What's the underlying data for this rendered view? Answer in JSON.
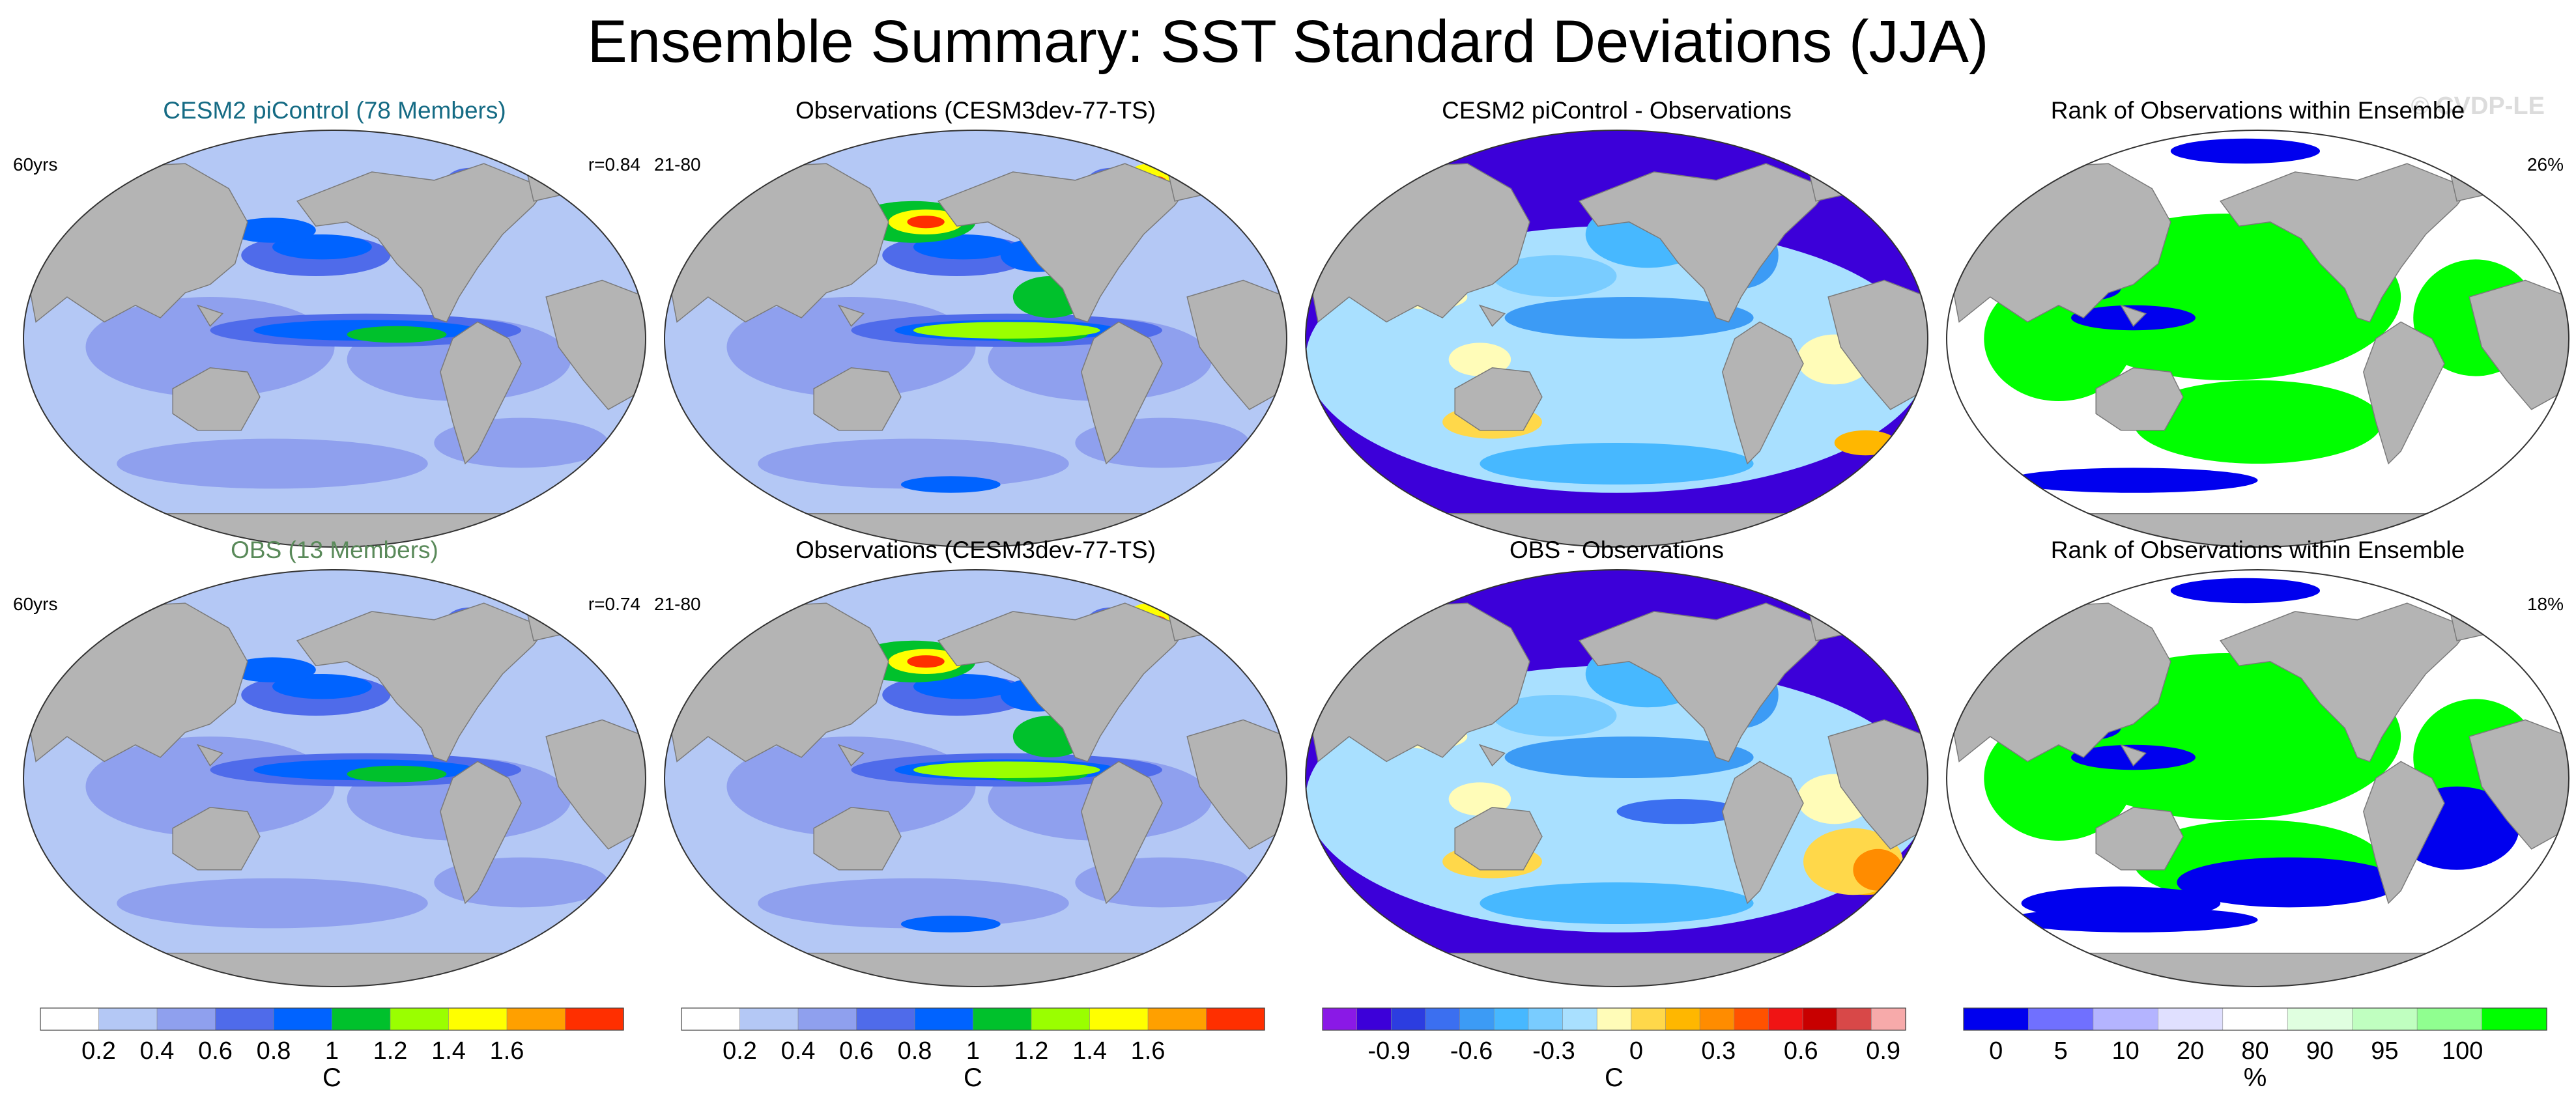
{
  "title": "Ensemble Summary: SST Standard Deviations (JJA)",
  "watermark": "© CVDP-LE",
  "colors": {
    "land": "#b4b4b4",
    "ocean_bg": "#ffffff",
    "std_palette": [
      "#ffffff",
      "#b4c8f5",
      "#8fa0ee",
      "#4f6bea",
      "#0063ff",
      "#00c12c",
      "#9aff00",
      "#ffff00",
      "#ffa000",
      "#ff2f00"
    ],
    "diff_palette": [
      "#8a19e6",
      "#3c00d9",
      "#2c3de0",
      "#3b6ff0",
      "#3c9bf5",
      "#47b8ff",
      "#79ccff",
      "#a9e0ff",
      "#fffcb8",
      "#ffd84a",
      "#ffb700",
      "#ff8c00",
      "#ff5200",
      "#f01414",
      "#c80000",
      "#d84848",
      "#f7aaaa"
    ],
    "rank_palette": [
      "#0000ee",
      "#7070ff",
      "#b4b4ff",
      "#e0e0ff",
      "#ffffff",
      "#e0ffe0",
      "#c0ffc0",
      "#90ff90",
      "#00ff00"
    ]
  },
  "panels": [
    {
      "title": "CESM2 piControl (78 Members)",
      "title_color": "#156b84",
      "left_label": "60yrs",
      "right_label": "r=0.84",
      "kind": "std"
    },
    {
      "title": "Observations (CESM3dev-77-TS)",
      "title_color": "#000000",
      "left_label": "21-80",
      "right_label": "",
      "kind": "std"
    },
    {
      "title": "CESM2 piControl - Observations",
      "title_color": "#000000",
      "left_label": "",
      "right_label": "",
      "kind": "diff"
    },
    {
      "title": "Rank of Observations within Ensemble",
      "title_color": "#000000",
      "left_label": "",
      "right_label": "26%",
      "kind": "rank"
    },
    {
      "title": "OBS (13 Members)",
      "title_color": "#5a8a5a",
      "left_label": "60yrs",
      "right_label": "r=0.74",
      "kind": "std"
    },
    {
      "title": "Observations (CESM3dev-77-TS)",
      "title_color": "#000000",
      "left_label": "21-80",
      "right_label": "",
      "kind": "std"
    },
    {
      "title": "OBS - Observations",
      "title_color": "#000000",
      "left_label": "",
      "right_label": "",
      "kind": "diff"
    },
    {
      "title": "Rank of Observations within Ensemble",
      "title_color": "#000000",
      "left_label": "",
      "right_label": "18%",
      "kind": "rank"
    }
  ],
  "colorbars": [
    {
      "kind": "std",
      "palette": "std_palette",
      "labels": [
        "0.2",
        "0.4",
        "0.6",
        "0.8",
        "1",
        "1.2",
        "1.4",
        "1.6"
      ],
      "unit": "C"
    },
    {
      "kind": "std",
      "palette": "std_palette",
      "labels": [
        "0.2",
        "0.4",
        "0.6",
        "0.8",
        "1",
        "1.2",
        "1.4",
        "1.6"
      ],
      "unit": "C"
    },
    {
      "kind": "diff",
      "palette": "diff_palette",
      "labels": [
        "-0.9",
        "-0.6",
        "-0.3",
        "0",
        "0.3",
        "0.6",
        "0.9"
      ],
      "unit": "C"
    },
    {
      "kind": "rank",
      "palette": "rank_palette",
      "labels": [
        "0",
        "5",
        "10",
        "20",
        "80",
        "90",
        "95",
        "100"
      ],
      "unit": "%"
    }
  ],
  "chart_data": {
    "type": "heatmap",
    "title": "Ensemble Summary: SST Standard Deviations (JJA)",
    "panels": [
      {
        "title": "CESM2 piControl (78 Members)",
        "metric": "SST standard deviation",
        "units": "C",
        "pattern_correlation": 0.84,
        "period": "60yrs"
      },
      {
        "title": "Observations (CESM3dev-77-TS)",
        "metric": "SST standard deviation",
        "units": "C",
        "period": "21-80"
      },
      {
        "title": "CESM2 piControl - Observations",
        "metric": "difference",
        "units": "C"
      },
      {
        "title": "Rank of Observations within Ensemble",
        "metric": "rank",
        "units": "%",
        "summary_percent": 26
      },
      {
        "title": "OBS (13 Members)",
        "metric": "SST standard deviation",
        "units": "C",
        "pattern_correlation": 0.74,
        "period": "60yrs"
      },
      {
        "title": "Observations (CESM3dev-77-TS)",
        "metric": "SST standard deviation",
        "units": "C",
        "period": "21-80"
      },
      {
        "title": "OBS - Observations",
        "metric": "difference",
        "units": "C"
      },
      {
        "title": "Rank of Observations within Ensemble",
        "metric": "rank",
        "units": "%",
        "summary_percent": 18
      }
    ],
    "std_levels": [
      0.2,
      0.4,
      0.6,
      0.8,
      1,
      1.2,
      1.4,
      1.6
    ],
    "diff_levels": [
      -0.9,
      -0.6,
      -0.3,
      0,
      0.3,
      0.6,
      0.9
    ],
    "rank_levels": [
      0,
      5,
      10,
      20,
      80,
      90,
      95,
      100
    ]
  }
}
